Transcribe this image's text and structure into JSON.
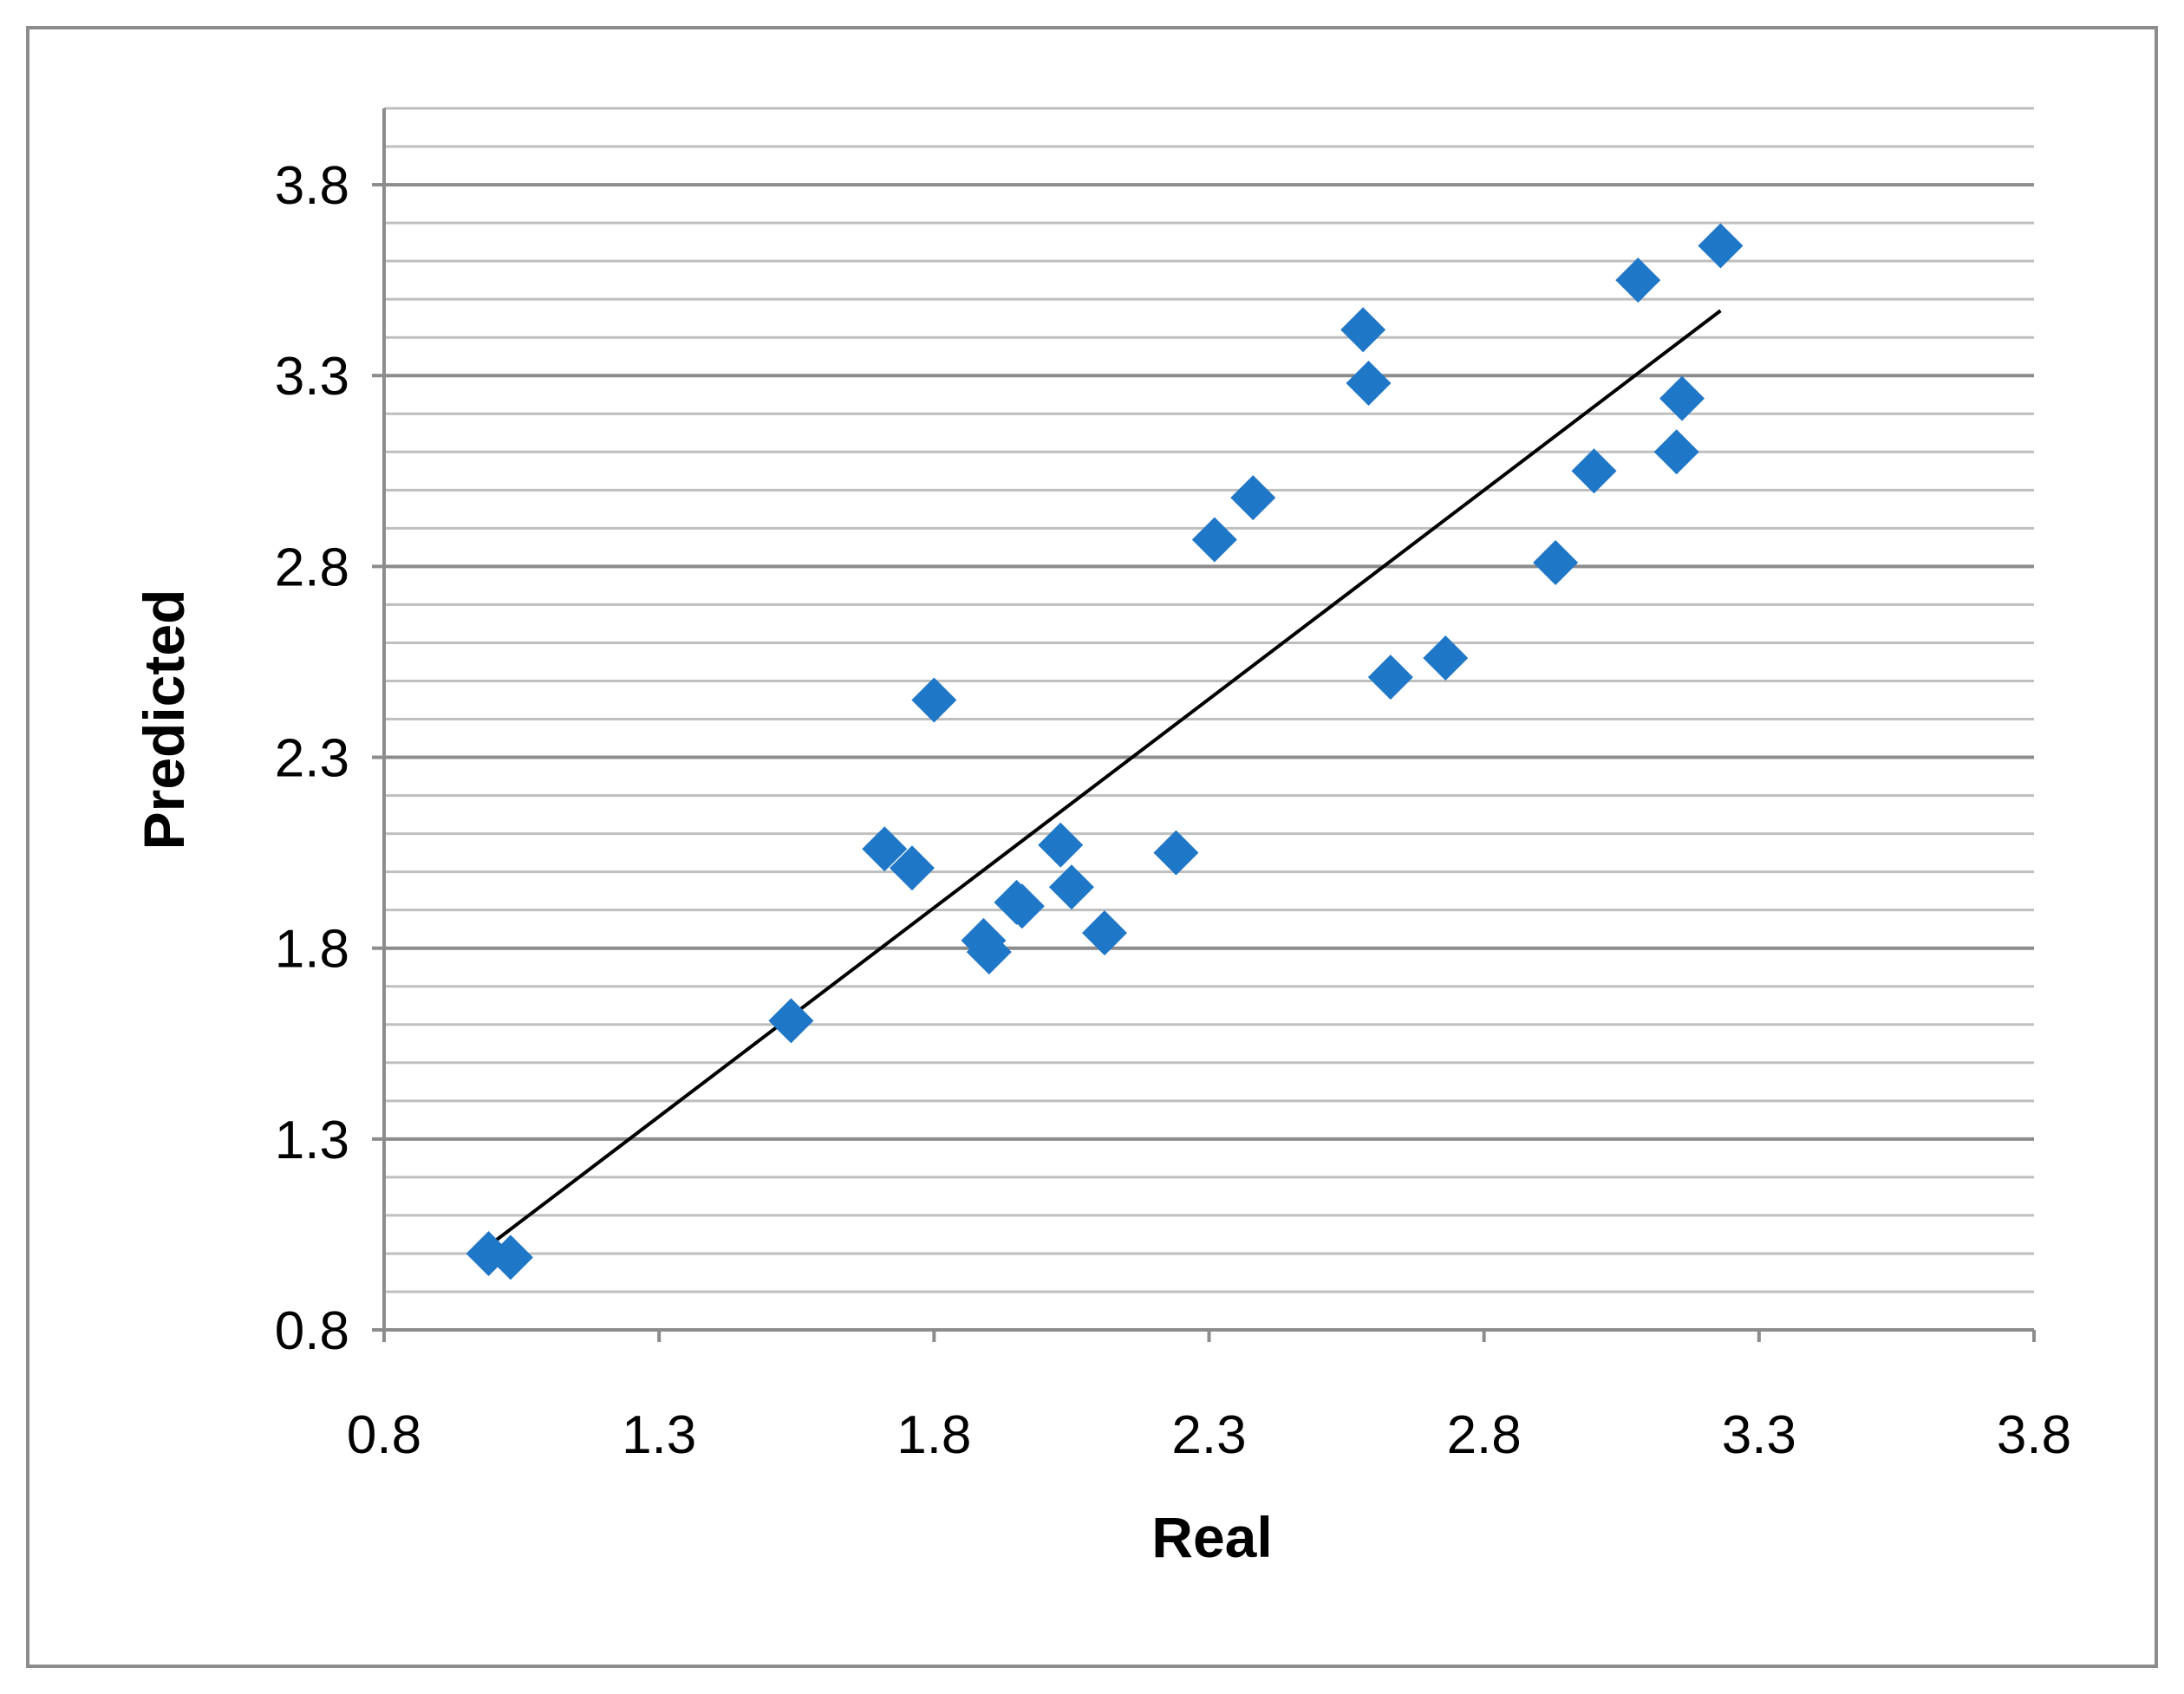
{
  "chart_data": {
    "type": "scatter",
    "title": "",
    "xlabel": "Real",
    "ylabel": "Predicted",
    "xlim": [
      0.8,
      3.8
    ],
    "ylim": [
      0.8,
      4.0
    ],
    "x_ticks": [
      "0.8",
      "1.3",
      "1.8",
      "2.3",
      "2.8",
      "3.3",
      "3.8"
    ],
    "y_ticks": [
      "0.8",
      "1.3",
      "1.8",
      "2.3",
      "2.8",
      "3.3",
      "3.8"
    ],
    "grid": "horizontal major and minor",
    "legend": "none",
    "series": [
      {
        "marker": "diamond",
        "color": "#1f77c8",
        "points": [
          {
            "x": 0.99,
            "y": 1.0
          },
          {
            "x": 1.03,
            "y": 0.99
          },
          {
            "x": 1.54,
            "y": 1.61
          },
          {
            "x": 1.71,
            "y": 2.06
          },
          {
            "x": 1.76,
            "y": 2.01
          },
          {
            "x": 1.8,
            "y": 2.45
          },
          {
            "x": 1.89,
            "y": 1.82
          },
          {
            "x": 1.9,
            "y": 1.79
          },
          {
            "x": 1.95,
            "y": 1.92
          },
          {
            "x": 1.96,
            "y": 1.91
          },
          {
            "x": 2.03,
            "y": 2.07
          },
          {
            "x": 2.05,
            "y": 1.96
          },
          {
            "x": 2.11,
            "y": 1.84
          },
          {
            "x": 2.24,
            "y": 2.05
          },
          {
            "x": 2.31,
            "y": 2.87
          },
          {
            "x": 2.38,
            "y": 2.98
          },
          {
            "x": 2.58,
            "y": 3.42
          },
          {
            "x": 2.59,
            "y": 3.28
          },
          {
            "x": 2.63,
            "y": 2.51
          },
          {
            "x": 2.73,
            "y": 2.56
          },
          {
            "x": 2.93,
            "y": 2.81
          },
          {
            "x": 3.0,
            "y": 3.05
          },
          {
            "x": 3.08,
            "y": 3.55
          },
          {
            "x": 3.15,
            "y": 3.1
          },
          {
            "x": 3.16,
            "y": 3.24
          },
          {
            "x": 3.23,
            "y": 3.64
          }
        ]
      }
    ],
    "trendline": {
      "type": "linear",
      "color": "#000000",
      "from": {
        "x": 0.99,
        "y": 1.02
      },
      "to": {
        "x": 3.23,
        "y": 3.47
      }
    },
    "colors": {
      "marker": "#1f77c8",
      "major_grid": "#8c8c8c",
      "minor_grid": "#bfbfbf",
      "axis": "#8c8c8c",
      "border": "#8c8c8c"
    }
  }
}
